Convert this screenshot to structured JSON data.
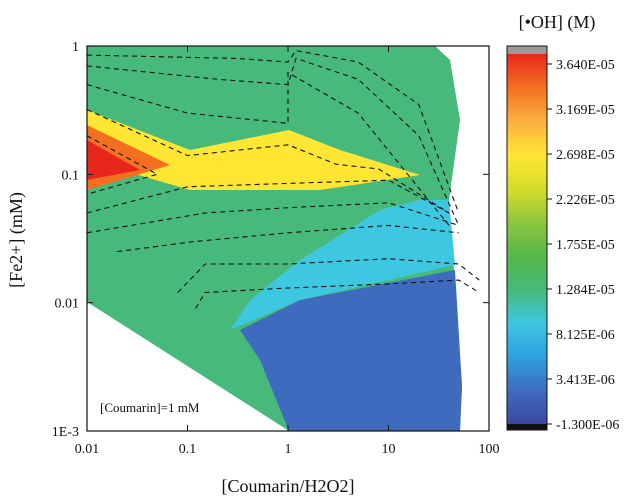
{
  "chart_data": {
    "type": "heatmap",
    "xlabel": "[Coumarin/H2O2]",
    "ylabel": "[Fe2+] (mM)",
    "x_scale": "log",
    "y_scale": "log",
    "xlim": [
      0.01,
      100
    ],
    "ylim": [
      0.001,
      1
    ],
    "x_ticks": [
      "0.01",
      "0.1",
      "1",
      "10",
      "100"
    ],
    "y_ticks": [
      "1E-3",
      "0.01",
      "0.1",
      "1"
    ],
    "annotation": "[Coumarin]=1 mM",
    "colorbar": {
      "label": "[•OH] (M)",
      "min": -1.3e-06,
      "max": 3.64e-05,
      "tick_labels": [
        "3.640E-05",
        "3.169E-05",
        "2.698E-05",
        "2.226E-05",
        "1.755E-05",
        "1.284E-05",
        "8.125E-06",
        "3.413E-06",
        "-1.300E-06"
      ],
      "colors": [
        "#3a4aa0",
        "#3f6bbf",
        "#2fa0dd",
        "#3ec7e0",
        "#47b97a",
        "#56b84a",
        "#8ec63f",
        "#d6dc2a",
        "#ffe633",
        "#fbb040",
        "#f37021",
        "#e8271c"
      ]
    },
    "contours": [
      {
        "level": 3.2e-05,
        "points": [
          [
            0.01,
            0.2
          ],
          [
            0.05,
            0.1
          ],
          [
            0.01,
            0.07
          ]
        ]
      },
      {
        "level": 2.7e-05,
        "points": [
          [
            0.01,
            0.32
          ],
          [
            0.1,
            0.14
          ],
          [
            1,
            0.17
          ],
          [
            3,
            0.12
          ],
          [
            8,
            0.11
          ],
          [
            40,
            0.05
          ]
        ]
      },
      {
        "level": 2.5e-05,
        "points": [
          [
            0.01,
            0.05
          ],
          [
            0.1,
            0.08
          ],
          [
            1,
            0.085
          ],
          [
            10,
            0.09
          ],
          [
            40,
            0.05
          ]
        ]
      },
      {
        "level": 2.2e-05,
        "points": [
          [
            0.01,
            0.5
          ],
          [
            0.1,
            0.3
          ],
          [
            1,
            0.25
          ],
          [
            1,
            0.62
          ],
          [
            5,
            0.3
          ],
          [
            40,
            0.04
          ]
        ]
      },
      {
        "level": 2e-05,
        "points": [
          [
            0.01,
            0.7
          ],
          [
            0.2,
            0.55
          ],
          [
            1,
            0.5
          ],
          [
            1.2,
            0.8
          ],
          [
            5,
            0.55
          ],
          [
            20,
            0.2
          ],
          [
            50,
            0.04
          ]
        ]
      },
      {
        "level": 1.9e-05,
        "points": [
          [
            0.01,
            0.85
          ],
          [
            0.3,
            0.8
          ],
          [
            1,
            0.75
          ],
          [
            1.2,
            0.92
          ],
          [
            5,
            0.75
          ],
          [
            20,
            0.35
          ],
          [
            50,
            0.05
          ]
        ]
      },
      {
        "level": 1.8e-05,
        "points": [
          [
            0.01,
            0.035
          ],
          [
            0.15,
            0.05
          ],
          [
            1,
            0.055
          ],
          [
            10,
            0.06
          ],
          [
            50,
            0.04
          ]
        ]
      },
      {
        "level": 1.6e-05,
        "points": [
          [
            0.02,
            0.025
          ],
          [
            0.12,
            0.03
          ],
          [
            1,
            0.035
          ],
          [
            10,
            0.04
          ],
          [
            50,
            0.035
          ]
        ]
      },
      {
        "level": 1.3e-05,
        "points": [
          [
            0.08,
            0.012
          ],
          [
            0.15,
            0.02
          ],
          [
            1,
            0.02
          ],
          [
            10,
            0.022
          ],
          [
            50,
            0.02
          ],
          [
            80,
            0.015
          ]
        ]
      },
      {
        "level": 1e-05,
        "points": [
          [
            0.12,
            0.009
          ],
          [
            0.15,
            0.012
          ],
          [
            1,
            0.013
          ],
          [
            10,
            0.014
          ],
          [
            50,
            0.015
          ],
          [
            80,
            0.012
          ]
        ]
      }
    ]
  }
}
